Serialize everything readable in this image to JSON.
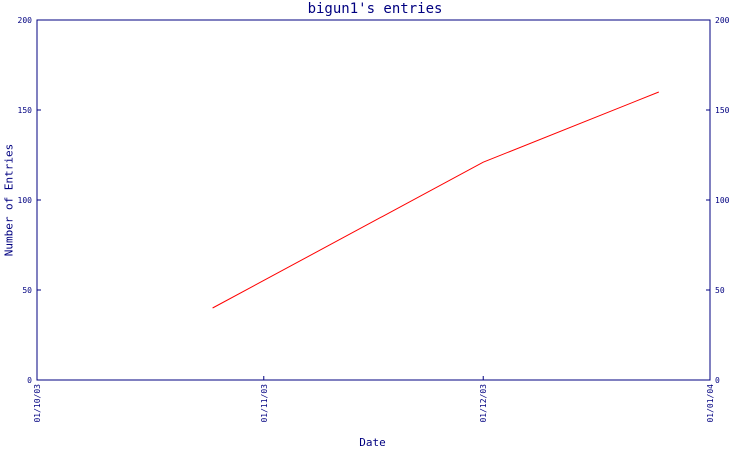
{
  "chart_data": {
    "type": "line",
    "title": "bigun1's entries",
    "xlabel": "Date",
    "ylabel": "Number of Entries",
    "x_ticks": [
      "01/10/03",
      "01/11/03",
      "01/12/03",
      "01/01/04"
    ],
    "y_ticks": [
      "0",
      "50",
      "100",
      "150",
      "200"
    ],
    "y_ticks_right": [
      "0",
      "50",
      "100",
      "150",
      "200"
    ],
    "ylim": [
      0,
      200
    ],
    "xlim": [
      "2003-10-01",
      "2004-01-01"
    ],
    "grid": false,
    "series": [
      {
        "x": [
          "2003-10-25",
          "2003-12-01",
          "2003-12-25"
        ],
        "values": [
          40,
          121,
          160
        ],
        "color": "#ff0000"
      }
    ],
    "axis_color": "#000080"
  }
}
